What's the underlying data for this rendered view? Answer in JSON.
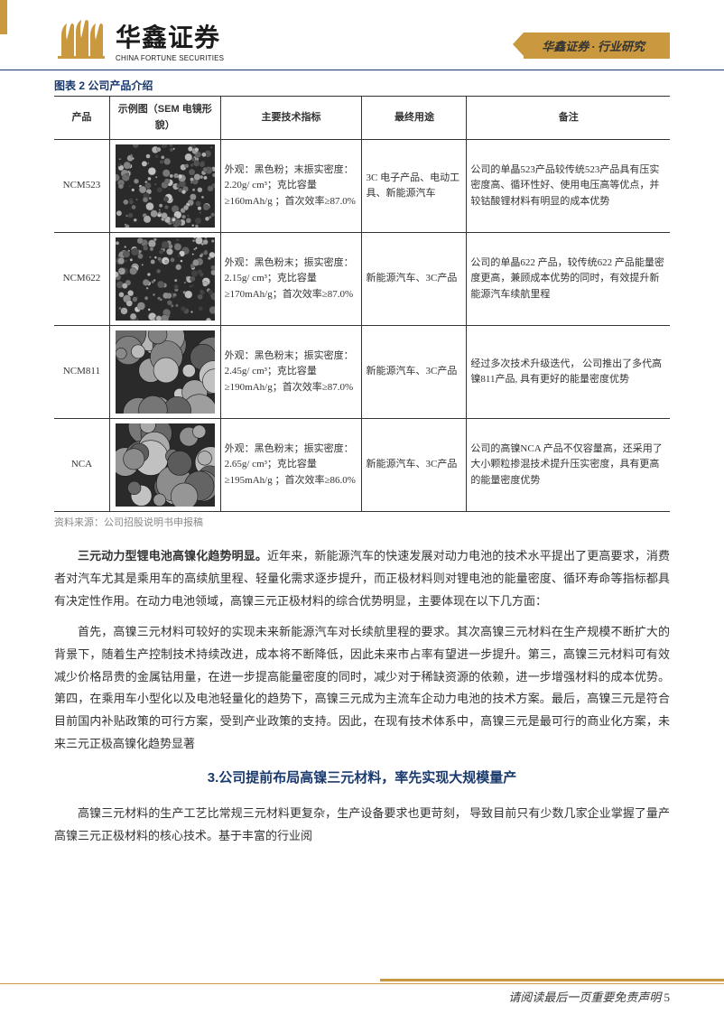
{
  "header": {
    "logo_cn": "华鑫证券",
    "logo_en": "CHINA FORTUNE SECURITIES",
    "tag": "华鑫证券 · 行业研究"
  },
  "table": {
    "title": "图表 2 公司产品介绍",
    "columns": [
      "产品",
      "示例图（SEM 电镜形貌）",
      "主要技术指标",
      "最终用途",
      "备注"
    ],
    "rows": [
      {
        "product": "NCM523",
        "sem_type": "granular-fine",
        "spec": "外观：黑色粉；末振实密度：2.20g/ cm³；克比容量≥160mAh/g ；首次效率≥87.0%",
        "use": "3C 电子产品、电动工具、新能源汽车",
        "note": "公司的单晶523产品较传统523产品具有压实密度高、循环性好、使用电压高等优点，并较钴酸锂材料有明显的成本优势"
      },
      {
        "product": "NCM622",
        "sem_type": "granular-fine",
        "spec": "外观：黑色粉末；振实密度：2.15g/ cm³；克比容量≥170mAh/g；首次效率≥87.0%",
        "use": "新能源汽车、3C产品",
        "note": "公司的单晶622 产品，较传统622 产品能量密度更高，兼顾成本优势的同时，有效提升新能源汽车续航里程"
      },
      {
        "product": "NCM811",
        "sem_type": "spherical",
        "spec": "外观：黑色粉末；振实密度：2.45g/ cm³；克比容量≥190mAh/g；首次效率≥87.0%",
        "use": "新能源汽车、3C产品",
        "note": "经过多次技术升级迭代， 公司推出了多代高镍811产品, 具有更好的能量密度优势"
      },
      {
        "product": "NCA",
        "sem_type": "spherical",
        "spec": "外观：黑色粉末；振实密度：2.65g/ cm³；克比容量≥195mAh/g ；首次效率≥86.0%",
        "use": "新能源汽车、3C产品",
        "note": "公司的高镍NCA 产品不仅容量高，还采用了大小颗粒掺混技术提升压实密度，具有更高的能量密度优势"
      }
    ],
    "source": "资料来源：公司招股说明书申报稿"
  },
  "body": {
    "p1_lead": "三元动力型锂电池高镍化趋势明显。",
    "p1": "近年来，新能源汽车的快速发展对动力电池的技术水平提出了更高要求，消费者对汽车尤其是乘用车的高续航里程、轻量化需求逐步提升，而正极材料则对锂电池的能量密度、循环寿命等指标都具有决定性作用。在动力电池领域，高镍三元正极材料的综合优势明显，主要体现在以下几方面：",
    "p2": "首先，高镍三元材料可较好的实现未来新能源汽车对长续航里程的要求。其次高镍三元材料在生产规模不断扩大的背景下，随着生产控制技术持续改进，成本将不断降低，因此未来市占率有望进一步提升。第三，高镍三元材料可有效减少价格昂贵的金属钴用量，在进一步提高能量密度的同时，减少对于稀缺资源的依赖，进一步增强材料的成本优势。第四，在乘用车小型化以及电池轻量化的趋势下，高镍三元成为主流车企动力电池的技术方案。最后，高镍三元是符合目前国内补贴政策的可行方案，受到产业政策的支持。因此，在现有技术体系中，高镍三元是最可行的商业化方案，未来三元正极高镍化趋势显著",
    "heading": "3.公司提前布局高镍三元材料，率先实现大规模量产",
    "p3": "高镍三元材料的生产工艺比常规三元材料更复杂，生产设备要求也更苛刻， 导致目前只有少数几家企业掌握了量产高镍三元正极材料的核心技术。基于丰富的行业阅"
  },
  "footer": {
    "text": "请阅读最后一页重要免责声明",
    "page": "5"
  },
  "colors": {
    "brand_gold": "#c9983f",
    "brand_blue": "#1a3a6e",
    "text": "#333333",
    "muted": "#888888"
  }
}
